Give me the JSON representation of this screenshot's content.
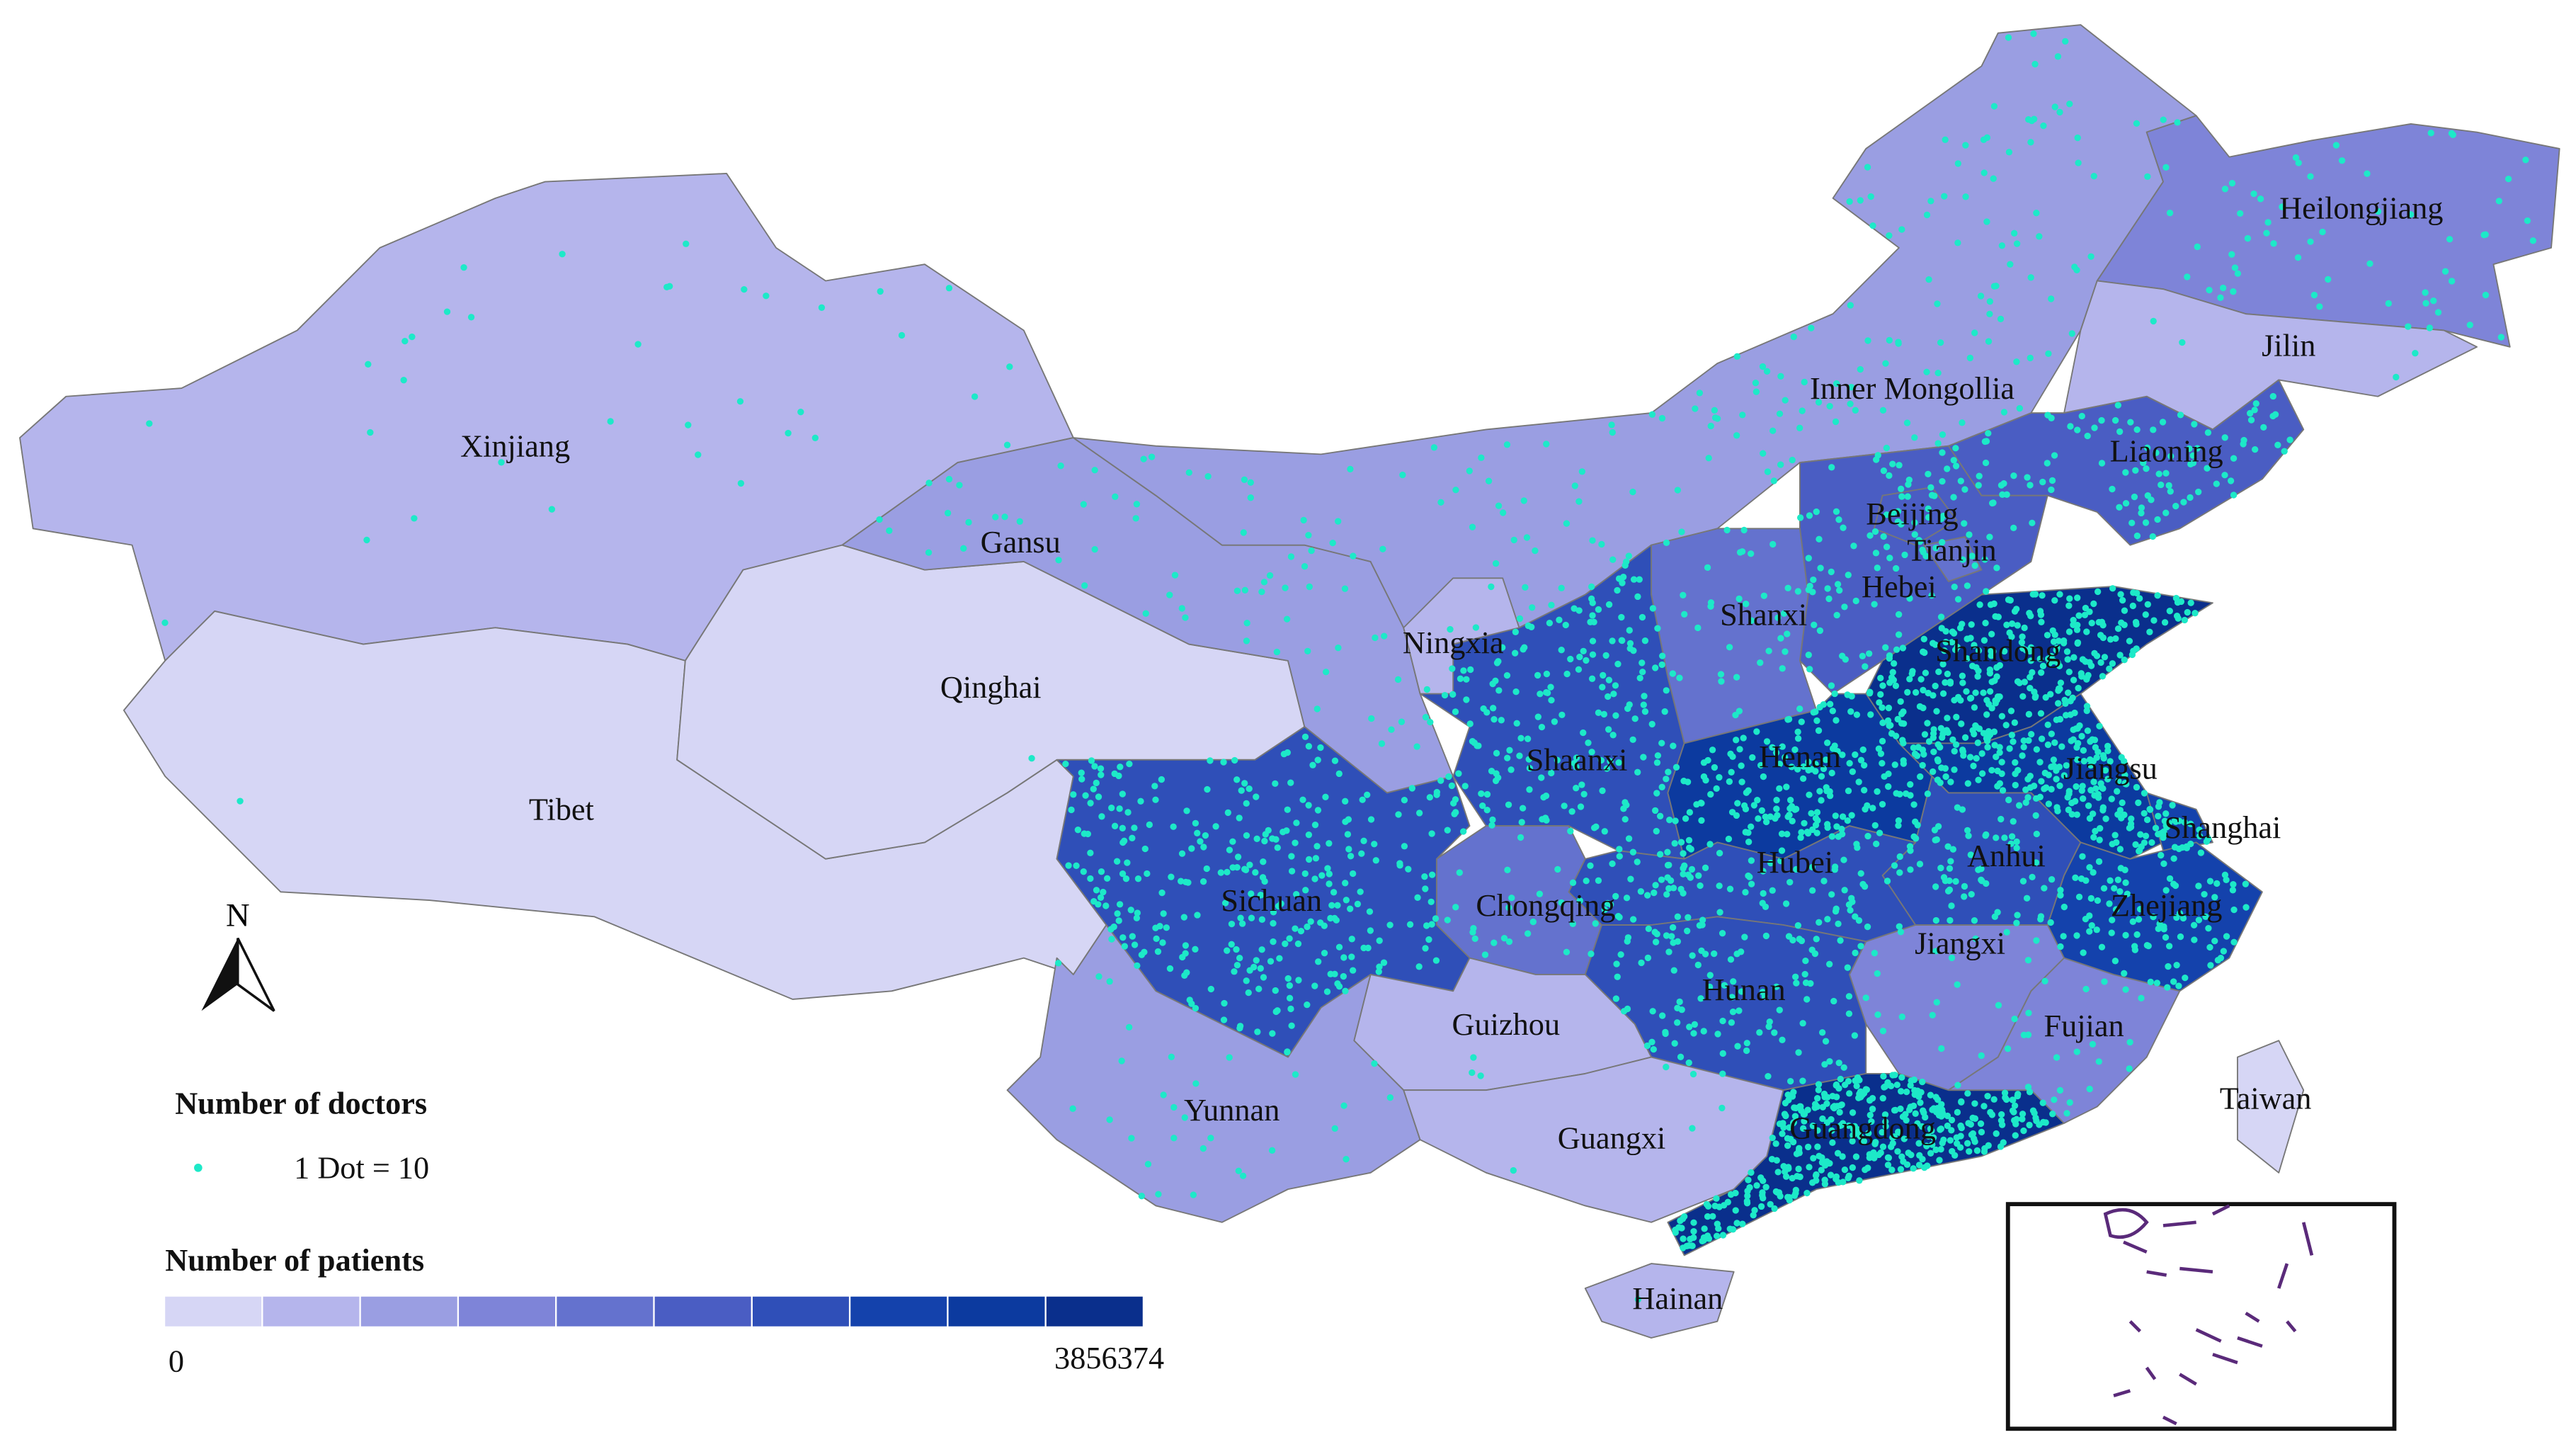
{
  "map": {
    "provinces": [
      {
        "name": "Xinjiang",
        "color": "#b5b5ec"
      },
      {
        "name": "Tibet",
        "color": "#d6d6f5"
      },
      {
        "name": "Qinghai",
        "color": "#d6d6f5"
      },
      {
        "name": "Gansu",
        "color": "#9a9ee2"
      },
      {
        "name": "Inner Mongollia",
        "color": "#9a9ee2"
      },
      {
        "name": "Heilongjiang",
        "color": "#7e84d8"
      },
      {
        "name": "Jilin",
        "color": "#b5b5ec"
      },
      {
        "name": "Liaoning",
        "color": "#4a5dc3"
      },
      {
        "name": "Hebei",
        "color": "#4a5dc3"
      },
      {
        "name": "Beijing",
        "color": "#4a5dc3"
      },
      {
        "name": "Tianjin",
        "color": "#6472ce"
      },
      {
        "name": "Shanxi",
        "color": "#6472ce"
      },
      {
        "name": "Shaanxi",
        "color": "#2f4fb8"
      },
      {
        "name": "Ningxia",
        "color": "#b5b5ec"
      },
      {
        "name": "Shandong",
        "color": "#0a2f8c"
      },
      {
        "name": "Henan",
        "color": "#0c3a9f"
      },
      {
        "name": "Jiangsu",
        "color": "#0c3a9f"
      },
      {
        "name": "Shanghai",
        "color": "#1442ac"
      },
      {
        "name": "Anhui",
        "color": "#2f4fb8"
      },
      {
        "name": "Hubei",
        "color": "#2f4fb8"
      },
      {
        "name": "Chongqing",
        "color": "#6472ce"
      },
      {
        "name": "Sichuan",
        "color": "#2f4fb8"
      },
      {
        "name": "Zhejiang",
        "color": "#1442ac"
      },
      {
        "name": "Jiangxi",
        "color": "#7e84d8"
      },
      {
        "name": "Hunan",
        "color": "#2f4fb8"
      },
      {
        "name": "Guizhou",
        "color": "#b5b5ec"
      },
      {
        "name": "Yunnan",
        "color": "#9a9ee2"
      },
      {
        "name": "Guangxi",
        "color": "#b5b5ec"
      },
      {
        "name": "Guangdong",
        "color": "#0a2f8c"
      },
      {
        "name": "Fujian",
        "color": "#7e84d8"
      },
      {
        "name": "Hainan",
        "color": "#b5b5ec"
      },
      {
        "name": "Taiwan",
        "color": "#d6d6f5"
      }
    ],
    "north": "N",
    "doctors_title": "Number of doctors",
    "dot_label": "1 Dot = 10",
    "patients_title": "Number of patients",
    "patients_min": 0,
    "patients_max": 3856374,
    "legend_colors": [
      "#d6d6f5",
      "#b5b5ec",
      "#9a9ee2",
      "#7e84d8",
      "#6472ce",
      "#4a5dc3",
      "#2f4fb8",
      "#1442ac",
      "#0c3a9f",
      "#0a2f8c"
    ],
    "dot_color": "#1de9c8"
  }
}
